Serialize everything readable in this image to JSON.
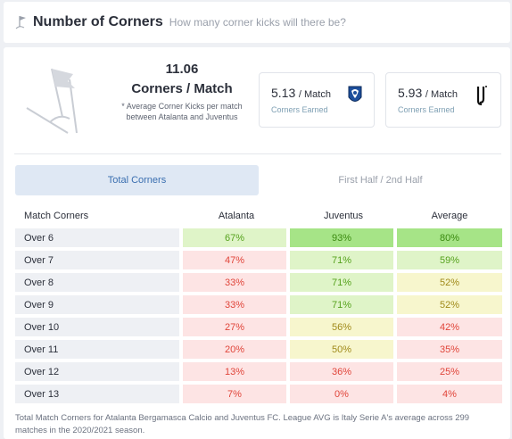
{
  "header": {
    "title": "Number of Corners",
    "subtitle": "How many corner kicks will there be?",
    "icon": "corner-flag-icon"
  },
  "summary": {
    "avg_value": "11.06",
    "avg_label": "Corners / Match",
    "avg_note": "* Average Corner Kicks per match between Atalanta and Juventus"
  },
  "cards": [
    {
      "team": "Atalanta",
      "value": "5.13",
      "per": "/ Match",
      "caption": "Corners Earned",
      "crest_icon": "atalanta-crest-icon"
    },
    {
      "team": "Juventus",
      "value": "5.93",
      "per": "/ Match",
      "caption": "Corners Earned",
      "crest_icon": "juventus-crest-icon"
    }
  ],
  "tabs": [
    {
      "label": "Total Corners",
      "active": true
    },
    {
      "label": "First Half / 2nd Half",
      "active": false
    }
  ],
  "table": {
    "headers": [
      "Match Corners",
      "Atalanta",
      "Juventus",
      "Average"
    ],
    "rows": [
      {
        "label": "Over 6",
        "values": [
          "67%",
          "93%",
          "80%"
        ]
      },
      {
        "label": "Over 7",
        "values": [
          "47%",
          "71%",
          "59%"
        ]
      },
      {
        "label": "Over 8",
        "values": [
          "33%",
          "71%",
          "52%"
        ]
      },
      {
        "label": "Over 9",
        "values": [
          "33%",
          "71%",
          "52%"
        ]
      },
      {
        "label": "Over 10",
        "values": [
          "27%",
          "56%",
          "42%"
        ]
      },
      {
        "label": "Over 11",
        "values": [
          "20%",
          "50%",
          "35%"
        ]
      },
      {
        "label": "Over 12",
        "values": [
          "13%",
          "36%",
          "25%"
        ]
      },
      {
        "label": "Over 13",
        "values": [
          "7%",
          "0%",
          "4%"
        ]
      }
    ]
  },
  "colors": {
    "red_bg": "#fde4e4",
    "red_text": "#e0453a",
    "yellow_bg": "#f7f6cd",
    "yellow_text": "#a08a1a",
    "light_green_bg": "#dff4c8",
    "light_green_text": "#56a21d",
    "strong_green_bg": "#a6e487",
    "strong_green_text": "#3b8a10"
  },
  "footer": "Total Match Corners for Atalanta Bergamasca Calcio and Juventus FC. League AVG is Italy Serie A's average across 299 matches in the 2020/2021 season."
}
